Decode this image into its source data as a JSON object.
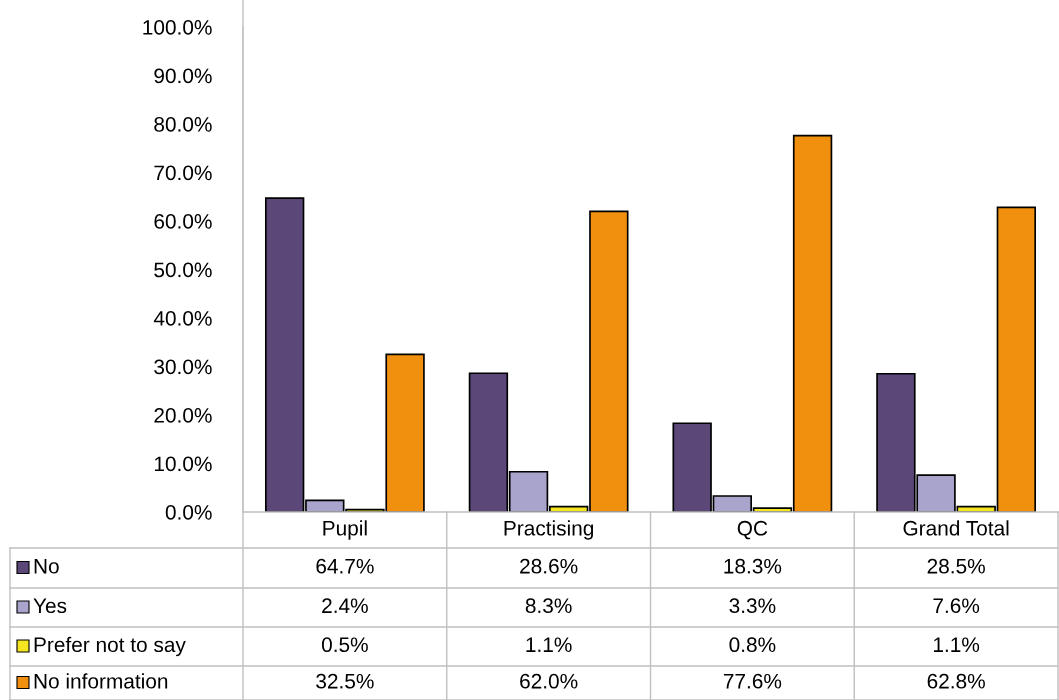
{
  "chart_data": {
    "type": "bar",
    "categories": [
      "Pupil",
      "Practising",
      "QC",
      "Grand Total"
    ],
    "series": [
      {
        "name": "No",
        "color": "#5b4778",
        "values": [
          64.7,
          28.6,
          18.3,
          28.5
        ],
        "value_labels": [
          "64.7%",
          "28.6%",
          "18.3%",
          "28.5%"
        ]
      },
      {
        "name": "Yes",
        "color": "#a9a4cb",
        "values": [
          2.4,
          8.3,
          3.3,
          7.6
        ],
        "value_labels": [
          "2.4%",
          "8.3%",
          "3.3%",
          "7.6%"
        ]
      },
      {
        "name": "Prefer not to say",
        "color": "#f5e620",
        "values": [
          0.5,
          1.1,
          0.8,
          1.1
        ],
        "value_labels": [
          "0.5%",
          "1.1%",
          "0.8%",
          "1.1%"
        ]
      },
      {
        "name": "No information",
        "color": "#f0900e",
        "values": [
          32.5,
          62.0,
          77.6,
          62.8
        ],
        "value_labels": [
          "32.5%",
          "62.0%",
          "77.6%",
          "62.8%"
        ]
      }
    ],
    "legend": "bottom left",
    "ylim": [
      0,
      100
    ],
    "yticks": [
      {
        "value": 0,
        "label": "0.0%"
      },
      {
        "value": 10,
        "label": "10.0%"
      },
      {
        "value": 20,
        "label": "20.0%"
      },
      {
        "value": 30,
        "label": "30.0%"
      },
      {
        "value": 40,
        "label": "40.0%"
      },
      {
        "value": 50,
        "label": "50.0%"
      },
      {
        "value": 60,
        "label": "60.0%"
      },
      {
        "value": 70,
        "label": "70.0%"
      },
      {
        "value": 80,
        "label": "80.0%"
      },
      {
        "value": 90,
        "label": "90.0%"
      },
      {
        "value": 100,
        "label": "100.0%"
      }
    ],
    "grid": false
  }
}
